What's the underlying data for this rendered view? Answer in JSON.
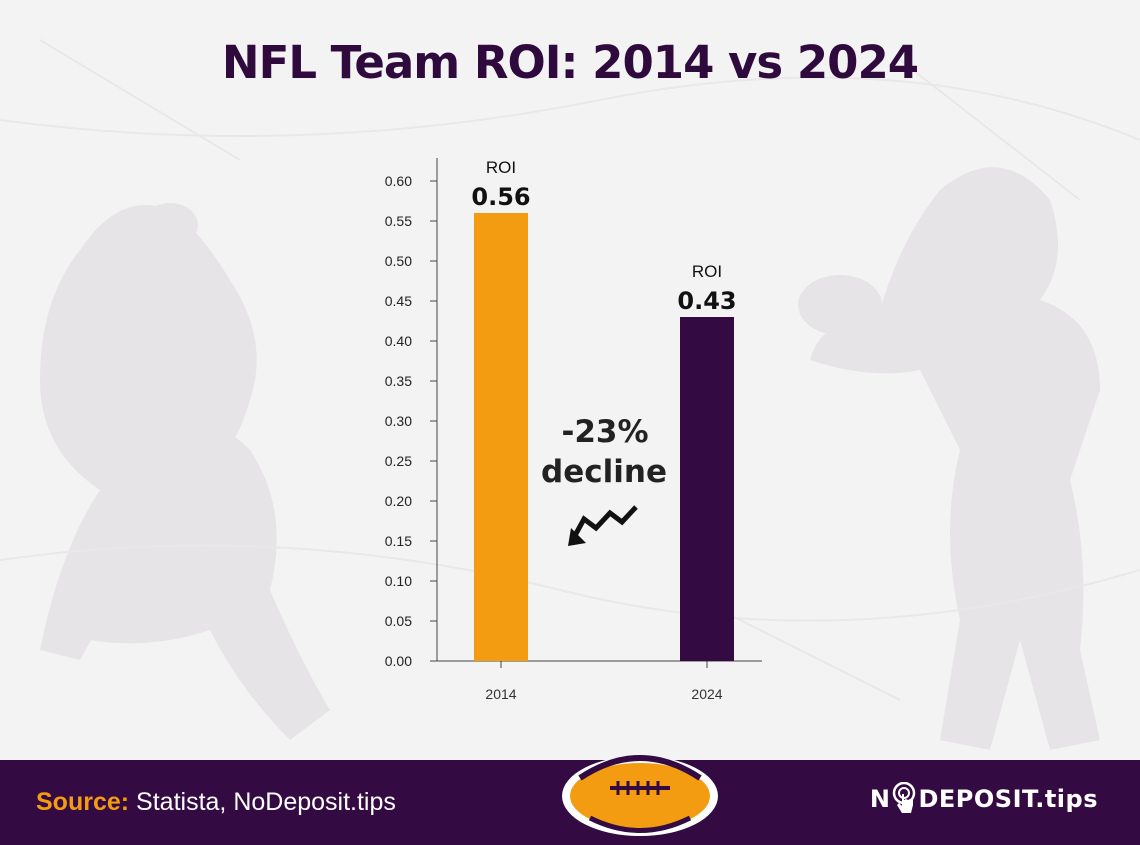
{
  "chart_data": {
    "type": "bar",
    "title": "NFL Team ROI: 2014 vs 2024",
    "categories": [
      "2014",
      "2024"
    ],
    "values": [
      0.56,
      0.43
    ],
    "value_label_prefix": "ROI",
    "value_labels": [
      "0.56",
      "0.43"
    ],
    "bar_colors": [
      "#f39c12",
      "#330a42"
    ],
    "ylim": [
      0,
      0.6
    ],
    "yticks": [
      "0.00",
      "0.05",
      "0.10",
      "0.15",
      "0.20",
      "0.25",
      "0.30",
      "0.35",
      "0.40",
      "0.45",
      "0.50",
      "0.55",
      "0.60"
    ],
    "annotation": {
      "line1": "-23%",
      "line2": "decline",
      "icon": "trend-down-arrow-icon"
    },
    "grid": false
  },
  "footer": {
    "source_label": "Source:",
    "source_text": "Statista, NoDeposit.tips",
    "logo_prefix": "N",
    "logo_suffix": "DEPOSIT.tips",
    "logo_icon": "pointer-hand-icon"
  },
  "colors": {
    "title": "#2f0a3d",
    "accent": "#f39c12",
    "footer_bg": "#330a42"
  }
}
